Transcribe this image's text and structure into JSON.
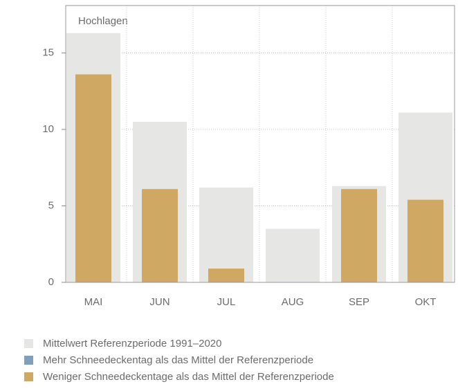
{
  "chart_data": {
    "type": "bar",
    "annotation": "Hochlagen",
    "categories": [
      "MAI",
      "JUN",
      "JUL",
      "AUG",
      "SEP",
      "OKT"
    ],
    "series": [
      {
        "name": "Mittelwert Referenzperiode 1991–2020",
        "color": "#e6e6e4",
        "values": [
          16.3,
          10.5,
          6.2,
          3.5,
          6.3,
          11.1
        ]
      },
      {
        "name": "Schneedeckentage",
        "values": [
          13.6,
          6.1,
          0.9,
          0,
          6.1,
          5.4
        ]
      }
    ],
    "legend": [
      {
        "name": "Mittelwert Referenzperiode 1991–2020",
        "color": "#e6e6e4"
      },
      {
        "name": "Mehr Schneedeckentag als das Mittel der Referenzperiode",
        "color": "#7f9fbd"
      },
      {
        "name": "Weniger Schneedeckentage als das Mittel der Referenzperiode",
        "color": "#cfa864"
      }
    ],
    "ylim": [
      0,
      18.1
    ],
    "yticks": [
      0,
      5,
      10,
      15
    ],
    "grid": true
  }
}
